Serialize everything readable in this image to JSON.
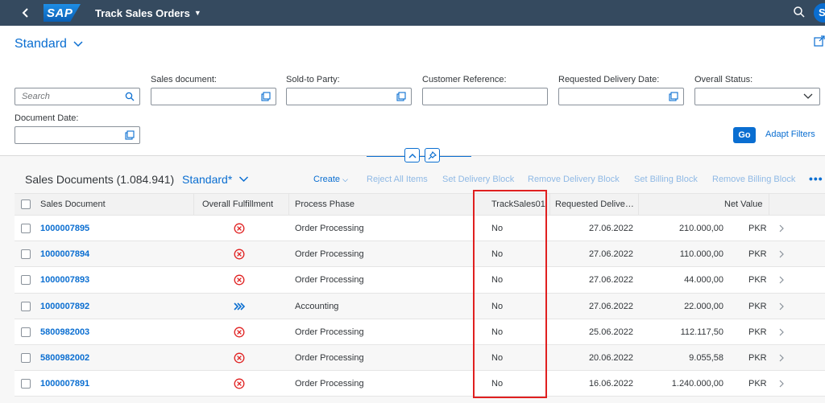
{
  "shell": {
    "logo_text": "SAP",
    "app_title": "Track Sales Orders",
    "avatar_initial": "S"
  },
  "filter_bar": {
    "variant_name": "Standard",
    "search_placeholder": "Search",
    "labels": {
      "sales_document": "Sales document:",
      "sold_to_party": "Sold-to Party:",
      "customer_reference": "Customer Reference:",
      "requested_delivery_date": "Requested Delivery Date:",
      "overall_status": "Overall Status:",
      "document_date": "Document Date:"
    },
    "go_label": "Go",
    "adapt_filters_label": "Adapt Filters"
  },
  "table": {
    "title": "Sales Documents (1.084.941)",
    "variant": "Standard*",
    "toolbar": {
      "create": "Create",
      "reject_all": "Reject All Items",
      "set_delivery_block": "Set Delivery Block",
      "remove_delivery_block": "Remove Delivery Block",
      "set_billing_block": "Set Billing Block",
      "remove_billing_block": "Remove Billing Block",
      "more": "•••"
    },
    "columns": {
      "sales_document": "Sales Document",
      "overall_fulfillment": "Overall Fulfillment",
      "process_phase": "Process Phase",
      "tracksales": "TrackSales01",
      "requested_delivery": "Requested Delive…",
      "net_value": "Net Value"
    },
    "rows": [
      {
        "doc": "1000007895",
        "status": "error",
        "phase": "Order Processing",
        "track": "No",
        "date": "27.06.2022",
        "value": "210.000,00",
        "currency": "PKR"
      },
      {
        "doc": "1000007894",
        "status": "error",
        "phase": "Order Processing",
        "track": "No",
        "date": "27.06.2022",
        "value": "110.000,00",
        "currency": "PKR"
      },
      {
        "doc": "1000007893",
        "status": "error",
        "phase": "Order Processing",
        "track": "No",
        "date": "27.06.2022",
        "value": "44.000,00",
        "currency": "PKR"
      },
      {
        "doc": "1000007892",
        "status": "in-progress",
        "phase": "Accounting",
        "track": "No",
        "date": "27.06.2022",
        "value": "22.000,00",
        "currency": "PKR"
      },
      {
        "doc": "5800982003",
        "status": "error",
        "phase": "Order Processing",
        "track": "No",
        "date": "25.06.2022",
        "value": "112.117,50",
        "currency": "PKR"
      },
      {
        "doc": "5800982002",
        "status": "error",
        "phase": "Order Processing",
        "track": "No",
        "date": "20.06.2022",
        "value": "9.055,58",
        "currency": "PKR"
      },
      {
        "doc": "1000007891",
        "status": "error",
        "phase": "Order Processing",
        "track": "No",
        "date": "16.06.2022",
        "value": "1.240.000,00",
        "currency": "PKR"
      }
    ]
  },
  "colors": {
    "shell": "#354a5f",
    "brand_blue": "#0a6ed1",
    "error_red": "#e02020",
    "highlight_red": "#e02020"
  },
  "icons": {
    "error": "circle-x-icon",
    "in_progress": "double-chevron-right-icon"
  }
}
